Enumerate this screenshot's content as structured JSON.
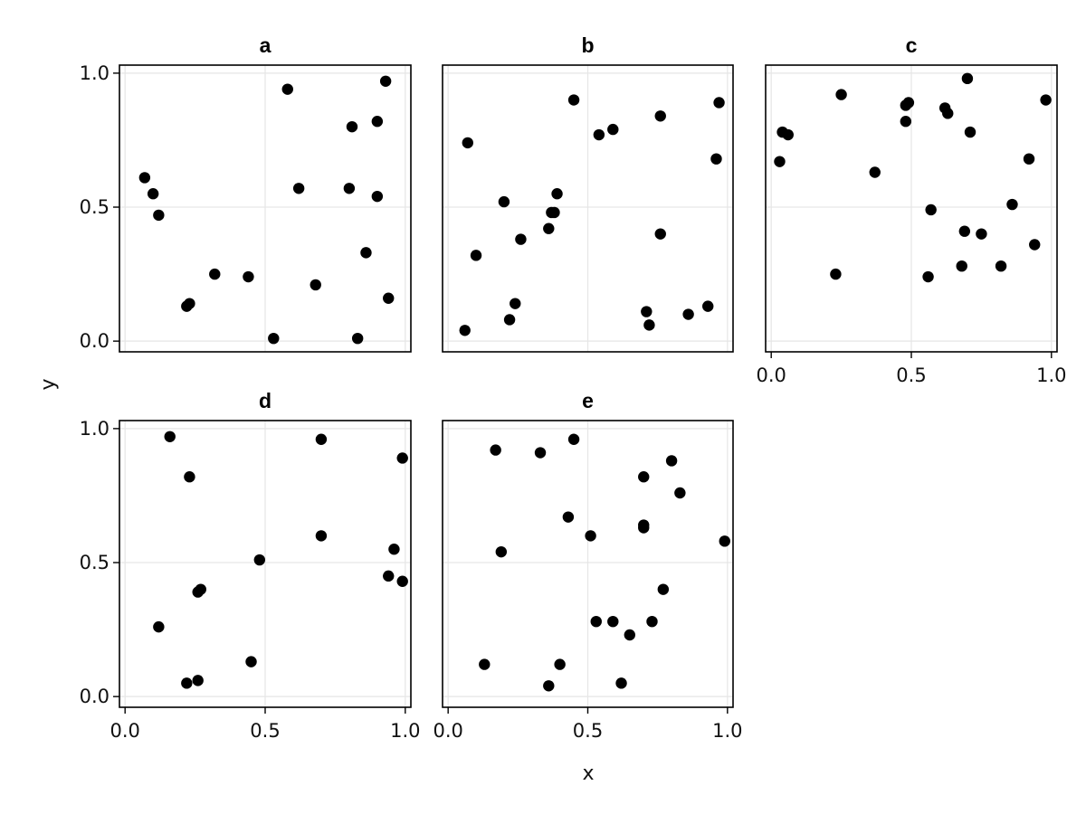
{
  "chart_data": {
    "type": "scatter",
    "xlabel": "x",
    "ylabel": "y",
    "xlim": [
      -0.02,
      1.02
    ],
    "ylim": [
      -0.04,
      1.03
    ],
    "xticks": [
      "0.0",
      "0.5",
      "1.0"
    ],
    "yticks": [
      "0.0",
      "0.5",
      "1.0"
    ],
    "grid": true,
    "marker_color": "#000000",
    "panels": [
      {
        "title": "a",
        "points": [
          [
            0.07,
            0.61
          ],
          [
            0.1,
            0.55
          ],
          [
            0.12,
            0.47
          ],
          [
            0.22,
            0.13
          ],
          [
            0.23,
            0.14
          ],
          [
            0.32,
            0.25
          ],
          [
            0.44,
            0.24
          ],
          [
            0.53,
            0.01
          ],
          [
            0.58,
            0.94
          ],
          [
            0.62,
            0.57
          ],
          [
            0.68,
            0.21
          ],
          [
            0.8,
            0.57
          ],
          [
            0.81,
            0.8
          ],
          [
            0.83,
            0.01
          ],
          [
            0.86,
            0.33
          ],
          [
            0.9,
            0.82
          ],
          [
            0.9,
            0.54
          ],
          [
            0.93,
            0.97
          ],
          [
            0.94,
            0.16
          ]
        ]
      },
      {
        "title": "b",
        "points": [
          [
            0.07,
            0.74
          ],
          [
            0.06,
            0.04
          ],
          [
            0.1,
            0.32
          ],
          [
            0.2,
            0.52
          ],
          [
            0.22,
            0.08
          ],
          [
            0.24,
            0.14
          ],
          [
            0.26,
            0.38
          ],
          [
            0.36,
            0.42
          ],
          [
            0.37,
            0.48
          ],
          [
            0.38,
            0.48
          ],
          [
            0.39,
            0.55
          ],
          [
            0.45,
            0.9
          ],
          [
            0.54,
            0.77
          ],
          [
            0.59,
            0.79
          ],
          [
            0.71,
            0.11
          ],
          [
            0.72,
            0.06
          ],
          [
            0.76,
            0.84
          ],
          [
            0.76,
            0.4
          ],
          [
            0.86,
            0.1
          ],
          [
            0.93,
            0.13
          ],
          [
            0.96,
            0.68
          ],
          [
            0.97,
            0.89
          ]
        ]
      },
      {
        "title": "c",
        "points": [
          [
            0.03,
            0.67
          ],
          [
            0.04,
            0.78
          ],
          [
            0.06,
            0.77
          ],
          [
            0.23,
            0.25
          ],
          [
            0.25,
            0.92
          ],
          [
            0.37,
            0.63
          ],
          [
            0.48,
            0.88
          ],
          [
            0.49,
            0.89
          ],
          [
            0.48,
            0.82
          ],
          [
            0.57,
            0.49
          ],
          [
            0.56,
            0.24
          ],
          [
            0.62,
            0.87
          ],
          [
            0.63,
            0.85
          ],
          [
            0.68,
            0.28
          ],
          [
            0.69,
            0.41
          ],
          [
            0.7,
            0.98
          ],
          [
            0.71,
            0.78
          ],
          [
            0.75,
            0.4
          ],
          [
            0.82,
            0.28
          ],
          [
            0.86,
            0.51
          ],
          [
            0.92,
            0.68
          ],
          [
            0.94,
            0.36
          ],
          [
            0.98,
            0.9
          ]
        ]
      },
      {
        "title": "d",
        "points": [
          [
            0.12,
            0.26
          ],
          [
            0.16,
            0.97
          ],
          [
            0.22,
            0.05
          ],
          [
            0.23,
            0.82
          ],
          [
            0.26,
            0.06
          ],
          [
            0.26,
            0.39
          ],
          [
            0.27,
            0.4
          ],
          [
            0.45,
            0.13
          ],
          [
            0.48,
            0.51
          ],
          [
            0.7,
            0.96
          ],
          [
            0.7,
            0.6
          ],
          [
            0.94,
            0.45
          ],
          [
            0.96,
            0.55
          ],
          [
            0.99,
            0.89
          ],
          [
            0.99,
            0.43
          ]
        ]
      },
      {
        "title": "e",
        "points": [
          [
            0.13,
            0.12
          ],
          [
            0.17,
            0.92
          ],
          [
            0.19,
            0.54
          ],
          [
            0.33,
            0.91
          ],
          [
            0.36,
            0.04
          ],
          [
            0.4,
            0.12
          ],
          [
            0.43,
            0.67
          ],
          [
            0.45,
            0.96
          ],
          [
            0.51,
            0.6
          ],
          [
            0.53,
            0.28
          ],
          [
            0.59,
            0.28
          ],
          [
            0.62,
            0.05
          ],
          [
            0.65,
            0.23
          ],
          [
            0.7,
            0.82
          ],
          [
            0.7,
            0.64
          ],
          [
            0.7,
            0.63
          ],
          [
            0.73,
            0.28
          ],
          [
            0.77,
            0.4
          ],
          [
            0.8,
            0.88
          ],
          [
            0.83,
            0.76
          ],
          [
            0.99,
            0.58
          ]
        ]
      }
    ]
  }
}
